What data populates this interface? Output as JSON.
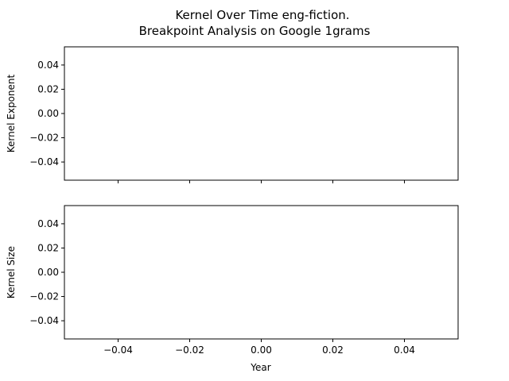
{
  "title_lines": [
    "Kernel Over Time eng-fiction.",
    "Breakpoint Analysis on Google 1grams"
  ],
  "chart_data": [
    {
      "type": "line",
      "ylabel": "Kernel Exponent",
      "xlabel": "",
      "series": [],
      "xlim": [
        -0.055,
        0.055
      ],
      "ylim": [
        -0.055,
        0.055
      ],
      "xticks": [
        -0.04,
        -0.02,
        0.0,
        0.02,
        0.04
      ],
      "yticks": [
        0.04,
        0.02,
        0.0,
        -0.02,
        -0.04
      ],
      "ytick_labels": [
        "0.04",
        "0.02",
        "0.00",
        "−0.02",
        "−0.04"
      ],
      "xtick_labels_visible": false,
      "grid": false
    },
    {
      "type": "line",
      "ylabel": "Kernel Size",
      "xlabel": "Year",
      "series": [],
      "xlim": [
        -0.055,
        0.055
      ],
      "ylim": [
        -0.055,
        0.055
      ],
      "xticks": [
        -0.04,
        -0.02,
        0.0,
        0.02,
        0.04
      ],
      "xtick_labels": [
        "−0.04",
        "−0.02",
        "0.00",
        "0.02",
        "0.04"
      ],
      "yticks": [
        0.04,
        0.02,
        0.0,
        -0.02,
        -0.04
      ],
      "ytick_labels": [
        "0.04",
        "0.02",
        "0.00",
        "−0.02",
        "−0.04"
      ],
      "xtick_labels_visible": true,
      "grid": false
    }
  ]
}
